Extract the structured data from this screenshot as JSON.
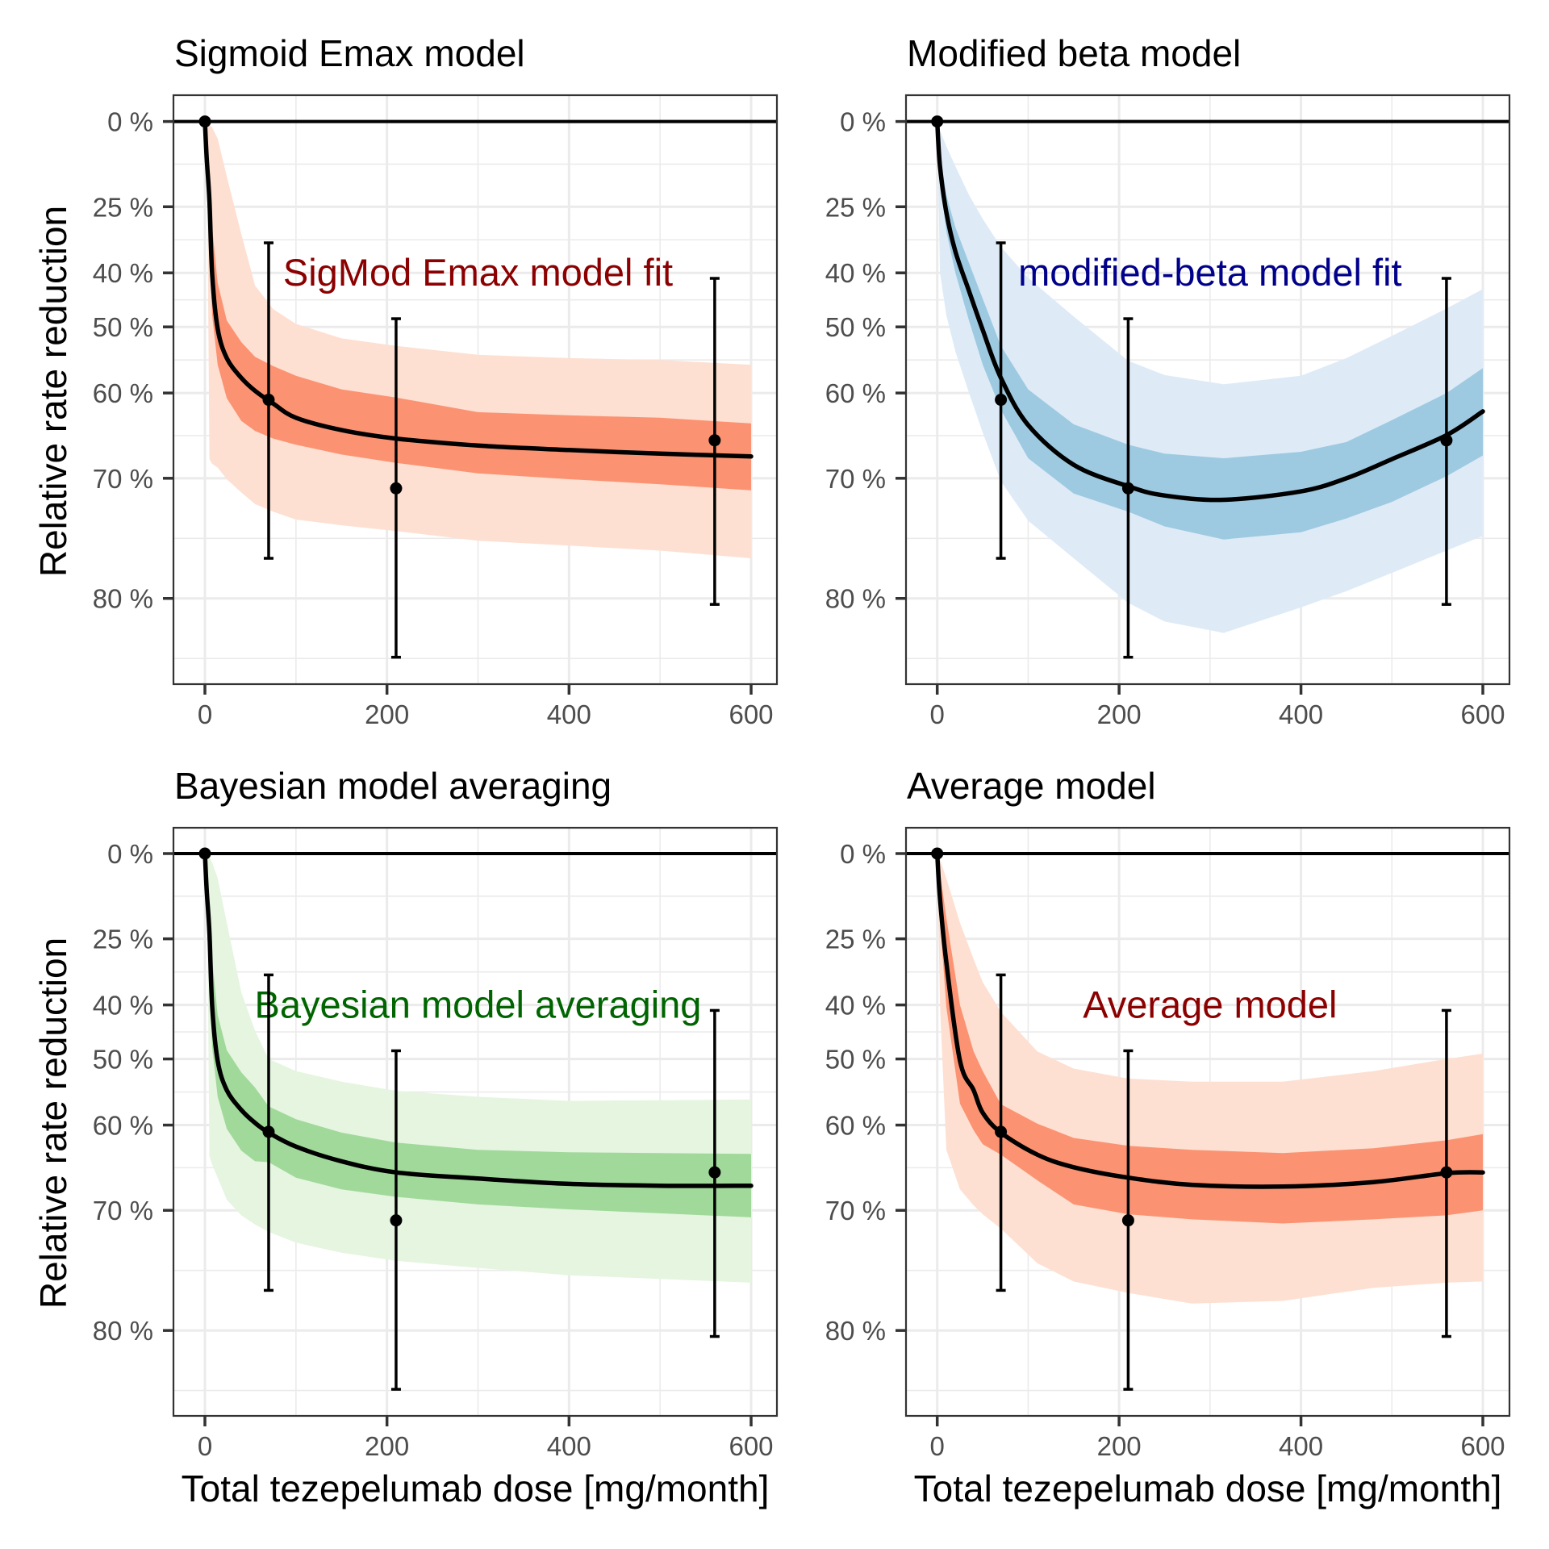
{
  "figure": {
    "xlabel": "Total tezepelumab dose [mg/month]",
    "ylabel": "Relative rate reduction"
  },
  "chart_data": [
    {
      "type": "line",
      "panel": "top-left",
      "title": "Sigmoid Emax model",
      "annotation": {
        "text": "SigMod Emax model fit",
        "x": 300,
        "y_pct": 40,
        "color": "#8b0000"
      },
      "xlabel": "",
      "ylabel": "Relative rate reduction",
      "xlim": [
        -34,
        634
      ],
      "x_ticks": [
        0,
        200,
        400,
        600
      ],
      "x_tick_labels": [
        "0",
        "200",
        "400",
        "600"
      ],
      "y_scale": "log(1 - reduction)",
      "y_ticks_pct": [
        0,
        25,
        40,
        50,
        60,
        70,
        80
      ],
      "y_tick_labels": [
        "0 %",
        "25 %",
        "40 %",
        "50 %",
        "60 %",
        "70 %",
        "80 %"
      ],
      "ylim_pct": [
        -9,
        85
      ],
      "grid": true,
      "reference_line_pct": 0,
      "colors": {
        "outer_band": "#fde0d2",
        "inner_band": "#fb9373"
      },
      "observed": [
        {
          "dose": 0,
          "pct": 0,
          "lo_pct": null,
          "hi_pct": null
        },
        {
          "dose": 70,
          "pct": 60.9,
          "lo_pct": 33.6,
          "hi_pct": 77.1
        },
        {
          "dose": 210,
          "pct": 71.0,
          "lo_pct": 48.6,
          "hi_pct": 83.6
        },
        {
          "dose": 560,
          "pct": 65.9,
          "lo_pct": 41.1,
          "hi_pct": 80.4
        }
      ],
      "fit": {
        "dose": [
          0,
          2,
          5,
          8,
          14,
          24,
          40,
          55,
          75,
          100,
          150,
          210,
          300,
          400,
          500,
          600
        ],
        "pct": [
          0,
          12,
          23.5,
          40.3,
          50.3,
          55.0,
          57.9,
          59.7,
          61.4,
          63.2,
          64.7,
          65.7,
          66.5,
          67.0,
          67.4,
          67.7
        ],
        "inner_lo_pct": [
          0,
          4,
          15,
          30,
          42,
          48.9,
          52.5,
          54.8,
          56.2,
          57.6,
          59.5,
          60.6,
          62.5,
          62.9,
          63.2,
          63.9
        ],
        "inner_hi_pct": [
          0,
          20,
          34,
          48,
          56,
          60.7,
          63.6,
          64.8,
          65.7,
          66.4,
          67.5,
          68.4,
          69.5,
          70.1,
          70.6,
          71.2
        ],
        "outer_lo_pct": [
          0,
          0,
          1,
          2,
          5.6,
          16.9,
          31.6,
          42.5,
          46.9,
          49.5,
          51.9,
          53.1,
          54.5,
          55.0,
          55.3,
          56.0
        ],
        "outer_hi_pct": [
          0,
          0,
          68.0,
          68.5,
          68.9,
          70.1,
          71.4,
          72.5,
          73.2,
          73.9,
          74.4,
          74.9,
          75.7,
          76.1,
          76.5,
          77.1
        ]
      }
    },
    {
      "type": "line",
      "panel": "top-right",
      "title": "Modified beta model",
      "annotation": {
        "text": "modified-beta model fit",
        "x": 300,
        "y_pct": 40,
        "color": "#00008b"
      },
      "xlabel": "",
      "ylabel": "",
      "xlim": [
        -34,
        634
      ],
      "x_ticks": [
        0,
        200,
        400,
        600
      ],
      "x_tick_labels": [
        "0",
        "200",
        "400",
        "600"
      ],
      "y_scale": "log(1 - reduction)",
      "y_ticks_pct": [
        0,
        25,
        40,
        50,
        60,
        70,
        80
      ],
      "y_tick_labels": [
        "0 %",
        "25 %",
        "40 %",
        "50 %",
        "60 %",
        "70 %",
        "80 %"
      ],
      "ylim_pct": [
        -9,
        85
      ],
      "grid": true,
      "reference_line_pct": 0,
      "colors": {
        "outer_band": "#deebf7",
        "inner_band": "#9ecae1"
      },
      "observed": [
        {
          "dose": 0,
          "pct": 0,
          "lo_pct": null,
          "hi_pct": null
        },
        {
          "dose": 70,
          "pct": 60.9,
          "lo_pct": 33.6,
          "hi_pct": 77.1
        },
        {
          "dose": 210,
          "pct": 71.0,
          "lo_pct": 48.6,
          "hi_pct": 83.6
        },
        {
          "dose": 560,
          "pct": 65.9,
          "lo_pct": 41.1,
          "hi_pct": 80.4
        }
      ],
      "fit": {
        "dose": [
          0,
          3,
          10,
          20,
          35,
          50,
          70,
          100,
          150,
          210,
          250,
          315,
          400,
          450,
          500,
          560,
          600
        ],
        "pct": [
          0,
          14,
          26.4,
          35.5,
          43.6,
          50.5,
          57.9,
          64.1,
          68.6,
          70.8,
          71.7,
          72.1,
          71.3,
          70.0,
          68.0,
          65.3,
          62.4
        ],
        "inner_lo_pct": [
          0,
          10,
          22,
          30,
          38,
          45,
          53.1,
          59.5,
          64.0,
          66.4,
          67.4,
          67.9,
          67.2,
          66.1,
          63.5,
          60.0,
          56.5
        ],
        "inner_hi_pct": [
          0,
          18,
          31,
          40,
          49,
          56,
          62.2,
          67.9,
          71.5,
          73.2,
          74.5,
          75.6,
          75.0,
          73.8,
          72.3,
          69.8,
          67.6
        ],
        "outer_lo_pct": [
          0,
          3,
          8,
          14,
          22,
          28,
          34.5,
          41.0,
          48.2,
          55.4,
          57.5,
          58.8,
          57.6,
          55.0,
          51.5,
          46.8,
          43.2
        ],
        "outer_hi_pct": [
          0,
          40,
          48,
          54,
          60,
          65,
          70.3,
          74.0,
          77.1,
          80.3,
          81.5,
          82.2,
          80.6,
          79.5,
          78.2,
          76.5,
          75.3
        ]
      }
    },
    {
      "type": "line",
      "panel": "bottom-left",
      "title": "Bayesian model averaging",
      "annotation": {
        "text": "Bayesian model averaging",
        "x": 300,
        "y_pct": 40,
        "color": "#006400"
      },
      "xlabel": "Total tezepelumab dose [mg/month]",
      "ylabel": "Relative rate reduction",
      "xlim": [
        -34,
        634
      ],
      "x_ticks": [
        0,
        200,
        400,
        600
      ],
      "x_tick_labels": [
        "0",
        "200",
        "400",
        "600"
      ],
      "y_scale": "log(1 - reduction)",
      "y_ticks_pct": [
        0,
        25,
        40,
        50,
        60,
        70,
        80
      ],
      "y_tick_labels": [
        "0 %",
        "25 %",
        "40 %",
        "50 %",
        "60 %",
        "70 %",
        "80 %"
      ],
      "ylim_pct": [
        -9,
        85
      ],
      "grid": true,
      "reference_line_pct": 0,
      "colors": {
        "outer_band": "#e5f5e0",
        "inner_band": "#a1d99b"
      },
      "observed": [
        {
          "dose": 0,
          "pct": 0,
          "lo_pct": null,
          "hi_pct": null
        },
        {
          "dose": 70,
          "pct": 60.9,
          "lo_pct": 33.6,
          "hi_pct": 77.1
        },
        {
          "dose": 210,
          "pct": 71.0,
          "lo_pct": 48.6,
          "hi_pct": 83.6
        },
        {
          "dose": 560,
          "pct": 65.9,
          "lo_pct": 41.1,
          "hi_pct": 80.4
        }
      ],
      "fit": {
        "dose": [
          0,
          2,
          5,
          8,
          14,
          24,
          40,
          55,
          70,
          100,
          150,
          210,
          300,
          400,
          500,
          600
        ],
        "pct": [
          0,
          12,
          23.5,
          40.3,
          50.3,
          55.0,
          57.9,
          59.7,
          61.0,
          62.8,
          64.6,
          65.9,
          66.6,
          67.2,
          67.4,
          67.4
        ],
        "inner_lo_pct": [
          0,
          4,
          15,
          30,
          42,
          48.5,
          52.2,
          54.6,
          57.4,
          59.2,
          61.0,
          62.3,
          63.2,
          63.5,
          63.6,
          63.7
        ],
        "inner_hi_pct": [
          0,
          20,
          34,
          48,
          56,
          60.5,
          63.3,
          64.6,
          64.7,
          66.5,
          67.8,
          68.6,
          69.4,
          69.9,
          70.3,
          70.7
        ],
        "outer_lo_pct": [
          0,
          0,
          1,
          3,
          8,
          20.8,
          37.4,
          45.0,
          50.0,
          52.0,
          53.7,
          55.1,
          56.0,
          56.6,
          56.5,
          56.4
        ],
        "outer_hi_pct": [
          0,
          0,
          64.0,
          65.0,
          66.5,
          68.9,
          70.5,
          71.4,
          72.1,
          73.1,
          74.0,
          74.7,
          75.3,
          75.9,
          76.2,
          76.5
        ]
      }
    },
    {
      "type": "line",
      "panel": "bottom-right",
      "title": "Average model",
      "annotation": {
        "text": "Average model",
        "x": 300,
        "y_pct": 40,
        "color": "#8b0000"
      },
      "xlabel": "Total tezepelumab dose [mg/month]",
      "ylabel": "",
      "xlim": [
        -34,
        634
      ],
      "x_ticks": [
        0,
        200,
        400,
        600
      ],
      "x_tick_labels": [
        "0",
        "200",
        "400",
        "600"
      ],
      "y_scale": "log(1 - reduction)",
      "y_ticks_pct": [
        0,
        25,
        40,
        50,
        60,
        70,
        80
      ],
      "y_tick_labels": [
        "0 %",
        "25 %",
        "40 %",
        "50 %",
        "60 %",
        "70 %",
        "80 %"
      ],
      "ylim_pct": [
        -9,
        85
      ],
      "grid": true,
      "reference_line_pct": 0,
      "colors": {
        "outer_band": "#fde0d2",
        "inner_band": "#fb9373"
      },
      "observed": [
        {
          "dose": 0,
          "pct": 0,
          "lo_pct": null,
          "hi_pct": null
        },
        {
          "dose": 70,
          "pct": 60.9,
          "lo_pct": 33.6,
          "hi_pct": 77.1
        },
        {
          "dose": 210,
          "pct": 71.0,
          "lo_pct": 48.6,
          "hi_pct": 83.6
        },
        {
          "dose": 560,
          "pct": 65.9,
          "lo_pct": 41.1,
          "hi_pct": 80.4
        }
      ],
      "fit": {
        "dose": [
          0,
          3,
          10,
          25,
          40,
          50,
          70,
          110,
          150,
          210,
          280,
          380,
          480,
          560,
          600
        ],
        "pct": [
          0,
          14,
          30.7,
          50.3,
          55.0,
          58.3,
          61.0,
          63.8,
          65.3,
          66.5,
          67.3,
          67.5,
          67.0,
          66.0,
          65.9
        ],
        "inner_lo_pct": [
          0,
          6,
          19.5,
          40.0,
          48.7,
          52.0,
          57.1,
          59.8,
          61.7,
          62.7,
          63.2,
          63.6,
          63.0,
          62.0,
          61.2
        ],
        "inner_hi_pct": [
          0,
          20,
          40.4,
          57.0,
          60.7,
          62.5,
          63.8,
          66.8,
          69.4,
          70.4,
          70.9,
          71.3,
          70.9,
          70.5,
          70.0
        ],
        "outer_lo_pct": [
          0,
          2,
          8.0,
          20.8,
          30.0,
          35.2,
          41.4,
          48.7,
          51.6,
          53.2,
          53.7,
          53.7,
          52.0,
          50.0,
          49.1
        ],
        "outer_hi_pct": [
          0,
          40,
          63.2,
          67.8,
          69.5,
          70.4,
          71.8,
          74.9,
          76.4,
          77.3,
          78.1,
          77.9,
          76.9,
          76.5,
          76.4
        ]
      }
    }
  ]
}
